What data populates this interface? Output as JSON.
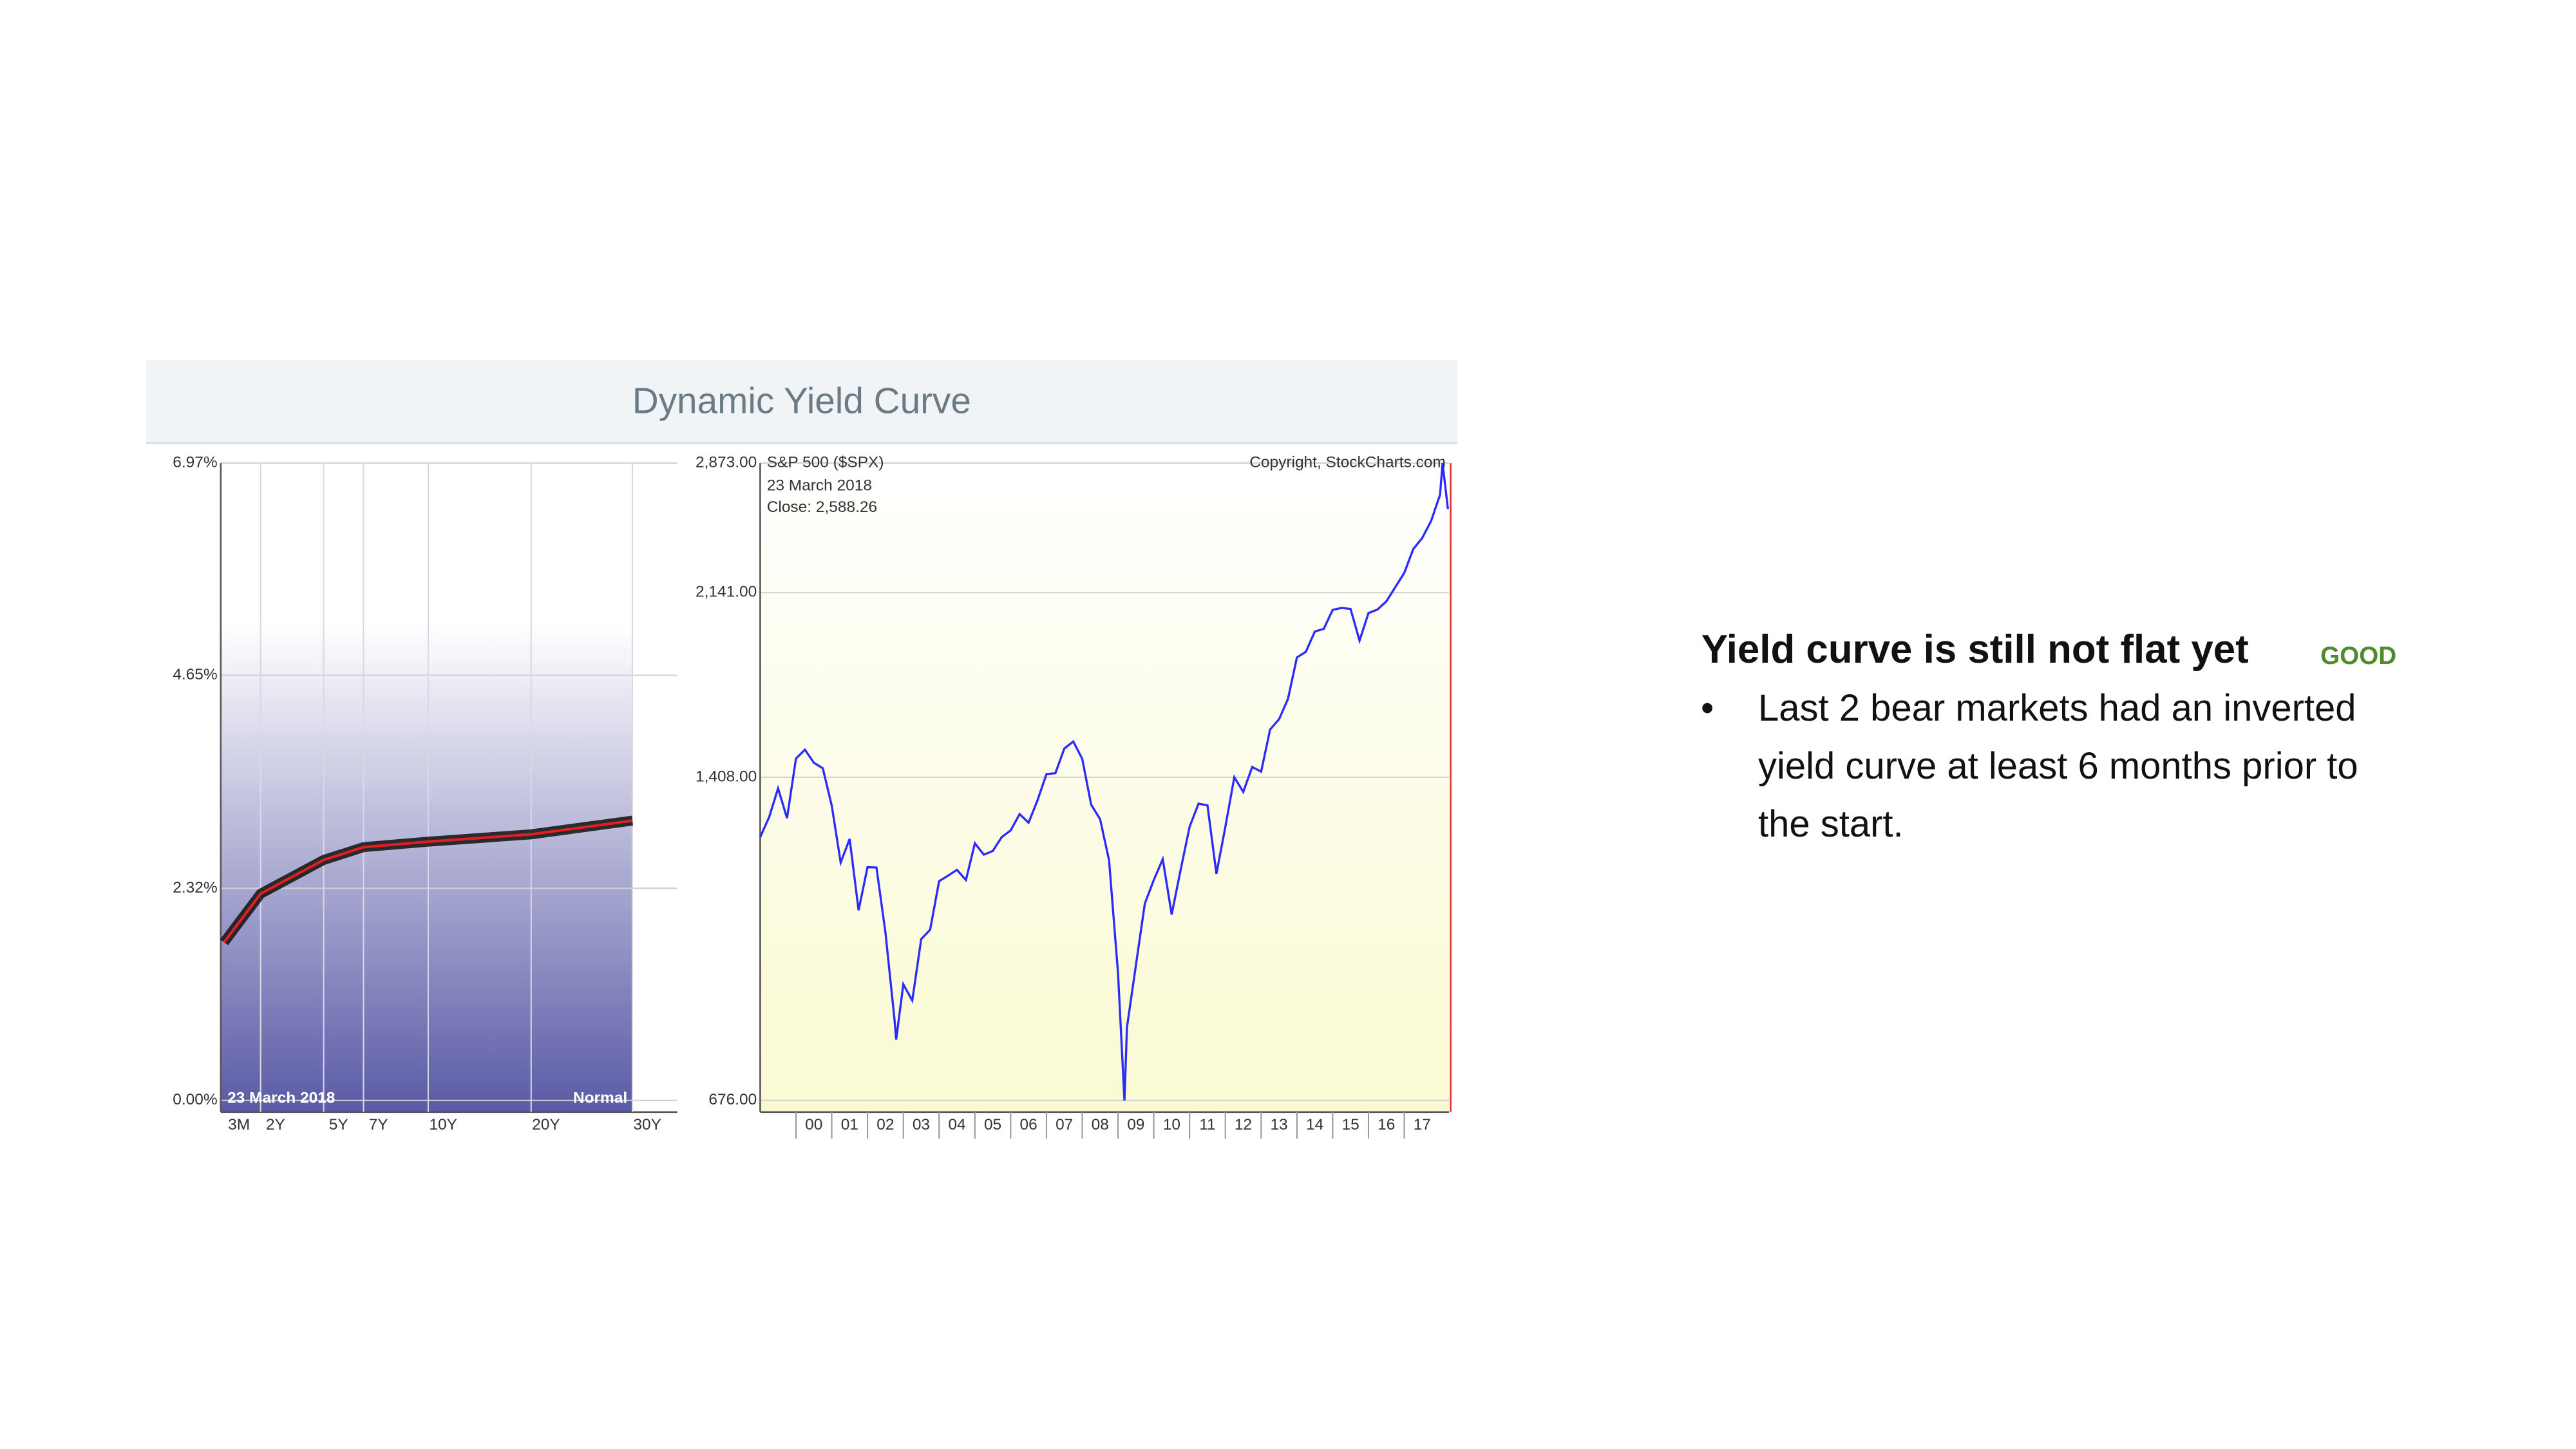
{
  "header": {
    "title": "Dynamic Yield Curve"
  },
  "slide": {
    "heading": "Yield curve is still not flat yet",
    "tag": "GOOD",
    "bullets": [
      "Last 2 bear markets had an inverted yield curve at least 6 months prior to the start."
    ]
  },
  "chart_data": [
    {
      "type": "line",
      "categories": [
        "3M",
        "2Y",
        "5Y",
        "7Y",
        "10Y",
        "20Y",
        "30Y"
      ],
      "values": [
        1.73,
        2.26,
        2.63,
        2.77,
        2.83,
        2.91,
        3.06
      ],
      "color": "#e02020",
      "ylim": [
        0,
        6.97
      ],
      "yticks": [
        {
          "value": 0,
          "label": "0.00%"
        },
        {
          "value": 2.32,
          "label": "2.32%"
        },
        {
          "value": 4.65,
          "label": "4.65%"
        },
        {
          "value": 6.97,
          "label": "6.97%"
        }
      ],
      "grid": true,
      "annotations": [
        "23  March 2018",
        "Normal"
      ]
    },
    {
      "type": "line",
      "title": "S&P 500 ($SPX)",
      "source": "Copyright, StockCharts.com",
      "annotations": [
        "23  March 2018",
        "Close: 2,588.26"
      ],
      "log_scale": true,
      "color": "#2b2bff",
      "grid": true,
      "x": [
        -1,
        -0.75,
        -0.5,
        -0.25,
        0,
        0.25,
        0.5,
        0.75,
        1,
        1.25,
        1.5,
        1.75,
        2,
        2.25,
        2.5,
        2.75,
        2.8,
        3,
        3.25,
        3.5,
        3.75,
        4,
        4.25,
        4.5,
        4.75,
        5,
        5.25,
        5.5,
        5.75,
        6,
        6.25,
        6.5,
        6.75,
        7,
        7.25,
        7.5,
        7.75,
        8,
        8.25,
        8.5,
        8.75,
        9,
        9.18,
        9.25,
        9.5,
        9.75,
        10,
        10.25,
        10.5,
        10.75,
        11,
        11.25,
        11.5,
        11.75,
        12,
        12.25,
        12.5,
        12.75,
        13,
        13.25,
        13.5,
        13.75,
        14,
        14.25,
        14.5,
        14.75,
        15,
        15.25,
        15.5,
        15.75,
        16,
        16.25,
        16.5,
        16.75,
        17,
        17.25,
        17.5,
        17.75,
        18,
        18.07,
        18.22
      ],
      "values": [
        1229,
        1286,
        1373,
        1283,
        1469,
        1499,
        1455,
        1437,
        1320,
        1160,
        1224,
        1041,
        1148,
        1147,
        990,
        815,
        776,
        880,
        848,
        975,
        996,
        1112,
        1126,
        1141,
        1115,
        1212,
        1181,
        1191,
        1229,
        1248,
        1295,
        1270,
        1336,
        1418,
        1421,
        1503,
        1527,
        1468,
        1323,
        1280,
        1166,
        903,
        676,
        798,
        919,
        1057,
        1115,
        1169,
        1031,
        1141,
        1258,
        1326,
        1321,
        1131,
        1258,
        1408,
        1362,
        1441,
        1426,
        1569,
        1606,
        1682,
        1848,
        1872,
        1960,
        1972,
        2059,
        2068,
        2063,
        1920,
        2044,
        2060,
        2099,
        2168,
        2239,
        2363,
        2423,
        2519,
        2674,
        2873,
        2588
      ],
      "xlim": [
        -1,
        18.25
      ],
      "xticks": [
        {
          "value": 0,
          "label": "00"
        },
        {
          "value": 1,
          "label": "01"
        },
        {
          "value": 2,
          "label": "02"
        },
        {
          "value": 3,
          "label": "03"
        },
        {
          "value": 4,
          "label": "04"
        },
        {
          "value": 5,
          "label": "05"
        },
        {
          "value": 6,
          "label": "06"
        },
        {
          "value": 7,
          "label": "07"
        },
        {
          "value": 8,
          "label": "08"
        },
        {
          "value": 9,
          "label": "09"
        },
        10,
        11,
        12,
        13,
        14,
        15,
        16,
        17
      ],
      "ylim": [
        676,
        2873
      ],
      "yticks": [
        {
          "value": 676,
          "label": "676.00"
        },
        {
          "value": 1408,
          "label": "1,408.00"
        },
        {
          "value": 2141,
          "label": "2,141.00"
        },
        {
          "value": 2873,
          "label": "2,873.00"
        }
      ]
    }
  ]
}
